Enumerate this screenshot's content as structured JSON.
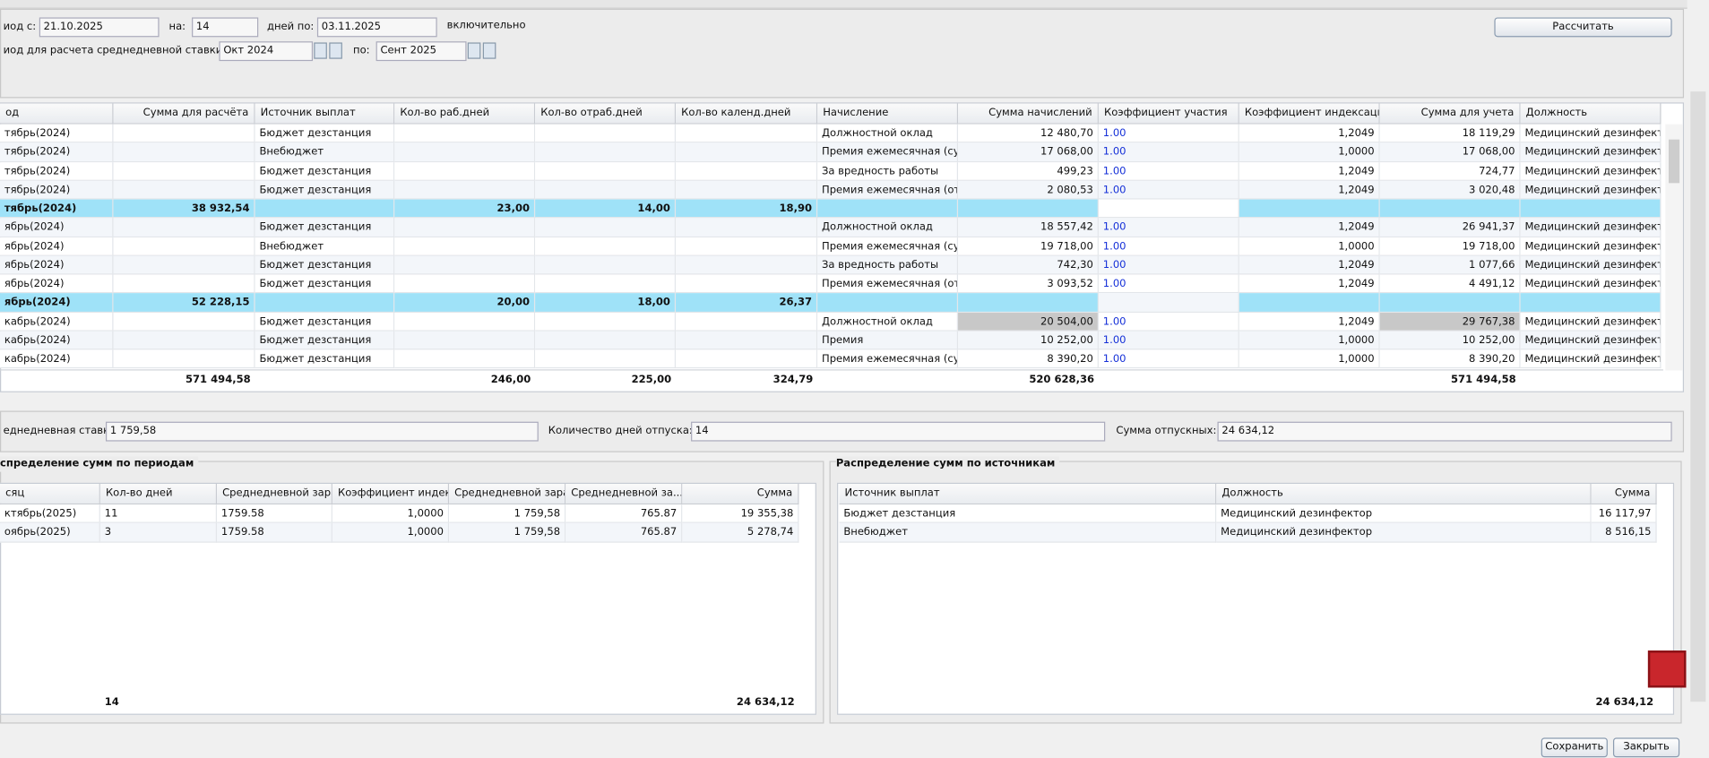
{
  "header": {
    "period_from_label": "иод с:",
    "period_from": "21.10.2025",
    "on_label": "на:",
    "days": "14",
    "days_to_label": "дней по:",
    "date_to": "03.11.2025",
    "inclusive": "включительно",
    "avg_period_label": "иод для расчета среднедневной ставки:",
    "avg_from": "Окт 2024",
    "to_label": "по:",
    "avg_to": "Сент 2025",
    "calc_button": "Рассчитать"
  },
  "main_table": {
    "columns": [
      "од",
      "Сумма для расчёта",
      "Источник выплат",
      "Кол-во раб.дней",
      "Кол-во отраб.дней",
      "Кол-во календ.дней",
      "Начисление",
      "Сумма начислений",
      "Коэффициент участия",
      "Коэффициент индексации",
      "Сумма для учета",
      "Должность"
    ],
    "rows": [
      {
        "cells": [
          "тябрь(2024)",
          null,
          "Бюджет дезстанция",
          null,
          null,
          null,
          "Должностной оклад",
          "12 480,70",
          "1.00",
          "1,2049",
          "18 119,29",
          "Медицинский дезинфектор"
        ]
      },
      {
        "cells": [
          "тябрь(2024)",
          null,
          "Внебюджет",
          null,
          null,
          null,
          "Премия ежемесячная (сум...",
          "17 068,00",
          "1.00",
          "1,0000",
          "17 068,00",
          "Медицинский дезинфектор"
        ]
      },
      {
        "cells": [
          "тябрь(2024)",
          null,
          "Бюджет дезстанция",
          null,
          null,
          null,
          "За вредность работы",
          "499,23",
          "1.00",
          "1,2049",
          "724,77",
          "Медицинский дезинфектор"
        ]
      },
      {
        "cells": [
          "тябрь(2024)",
          null,
          "Бюджет дезстанция",
          null,
          null,
          null,
          "Премия ежемесячная (от о...",
          "2 080,53",
          "1.00",
          "1,2049",
          "3 020,48",
          "Медицинский дезинфектор"
        ]
      },
      {
        "cells": [
          "тябрь(2024)",
          "38 932,54",
          null,
          "23,00",
          "14,00",
          "18,90",
          null,
          null,
          null,
          null,
          null,
          null
        ],
        "group": true
      },
      {
        "cells": [
          "ябрь(2024)",
          null,
          "Бюджет дезстанция",
          null,
          null,
          null,
          "Должностной оклад",
          "18 557,42",
          "1.00",
          "1,2049",
          "26 941,37",
          "Медицинский дезинфектор"
        ]
      },
      {
        "cells": [
          "ябрь(2024)",
          null,
          "Внебюджет",
          null,
          null,
          null,
          "Премия ежемесячная (сум...",
          "19 718,00",
          "1.00",
          "1,0000",
          "19 718,00",
          "Медицинский дезинфектор"
        ]
      },
      {
        "cells": [
          "ябрь(2024)",
          null,
          "Бюджет дезстанция",
          null,
          null,
          null,
          "За вредность работы",
          "742,30",
          "1.00",
          "1,2049",
          "1 077,66",
          "Медицинский дезинфектор"
        ]
      },
      {
        "cells": [
          "ябрь(2024)",
          null,
          "Бюджет дезстанция",
          null,
          null,
          null,
          "Премия ежемесячная (от о...",
          "3 093,52",
          "1.00",
          "1,2049",
          "4 491,12",
          "Медицинский дезинфектор"
        ]
      },
      {
        "cells": [
          "ябрь(2024)",
          "52 228,15",
          null,
          "20,00",
          "18,00",
          "26,37",
          null,
          null,
          null,
          null,
          null,
          null
        ],
        "group": true
      },
      {
        "cells": [
          "кабрь(2024)",
          null,
          "Бюджет дезстанция",
          null,
          null,
          null,
          "Должностной оклад",
          "20 504,00",
          "1.00",
          "1,2049",
          "29 767,38",
          "Медицинский дезинфектор"
        ],
        "shaded_cells": [
          7,
          10
        ]
      },
      {
        "cells": [
          "кабрь(2024)",
          null,
          "Бюджет дезстанция",
          null,
          null,
          null,
          "Премия",
          "10 252,00",
          "1.00",
          "1,0000",
          "10 252,00",
          "Медицинский дезинфектор"
        ]
      },
      {
        "cells": [
          "кабрь(2024)",
          null,
          "Бюджет дезстанция",
          null,
          null,
          null,
          "Премия ежемесячная (сум...",
          "8 390,20",
          "1.00",
          "1,0000",
          "8 390,20",
          "Медицинский дезинфектор"
        ]
      }
    ],
    "totals": [
      null,
      "571 494,58",
      null,
      "246,00",
      "225,00",
      "324,79",
      null,
      "520 628,36",
      null,
      null,
      "571 494,58",
      null
    ]
  },
  "summary": {
    "rate_label": "еднедневная ставка:",
    "rate": "1 759,58",
    "days_label": "Количество дней отпуска:",
    "days": "14",
    "sum_label": "Сумма отпускных:",
    "sum": "24 634,12"
  },
  "periods": {
    "title": "спределение сумм по периодам",
    "columns": [
      "сяц",
      "Кол-во дней",
      "Среднедневной зараб...",
      "Коэффициент индекс...",
      "Среднедневной зараб...",
      "Среднедневной за...",
      "Сумма"
    ],
    "rows": [
      [
        "ктябрь(2025)",
        "11",
        "1759.58",
        "1,0000",
        "1 759,58",
        "765.87",
        "19 355,38"
      ],
      [
        "оябрь(2025)",
        "3",
        "1759.58",
        "1,0000",
        "1 759,58",
        "765.87",
        "5 278,74"
      ]
    ],
    "totals": [
      null,
      "14",
      null,
      null,
      null,
      null,
      "24 634,12"
    ]
  },
  "sources": {
    "title": "Распределение сумм по источникам",
    "columns": [
      "Источник выплат",
      "Должность",
      "Сумма"
    ],
    "rows": [
      [
        "Бюджет дезстанция",
        "Медицинский дезинфектор",
        "16 117,97"
      ],
      [
        "Внебюджет",
        "Медицинский дезинфектор",
        "8 516,15"
      ]
    ],
    "totals": [
      null,
      null,
      "24 634,12"
    ]
  },
  "footer": {
    "save": "Сохранить",
    "close": "Закрыть"
  }
}
